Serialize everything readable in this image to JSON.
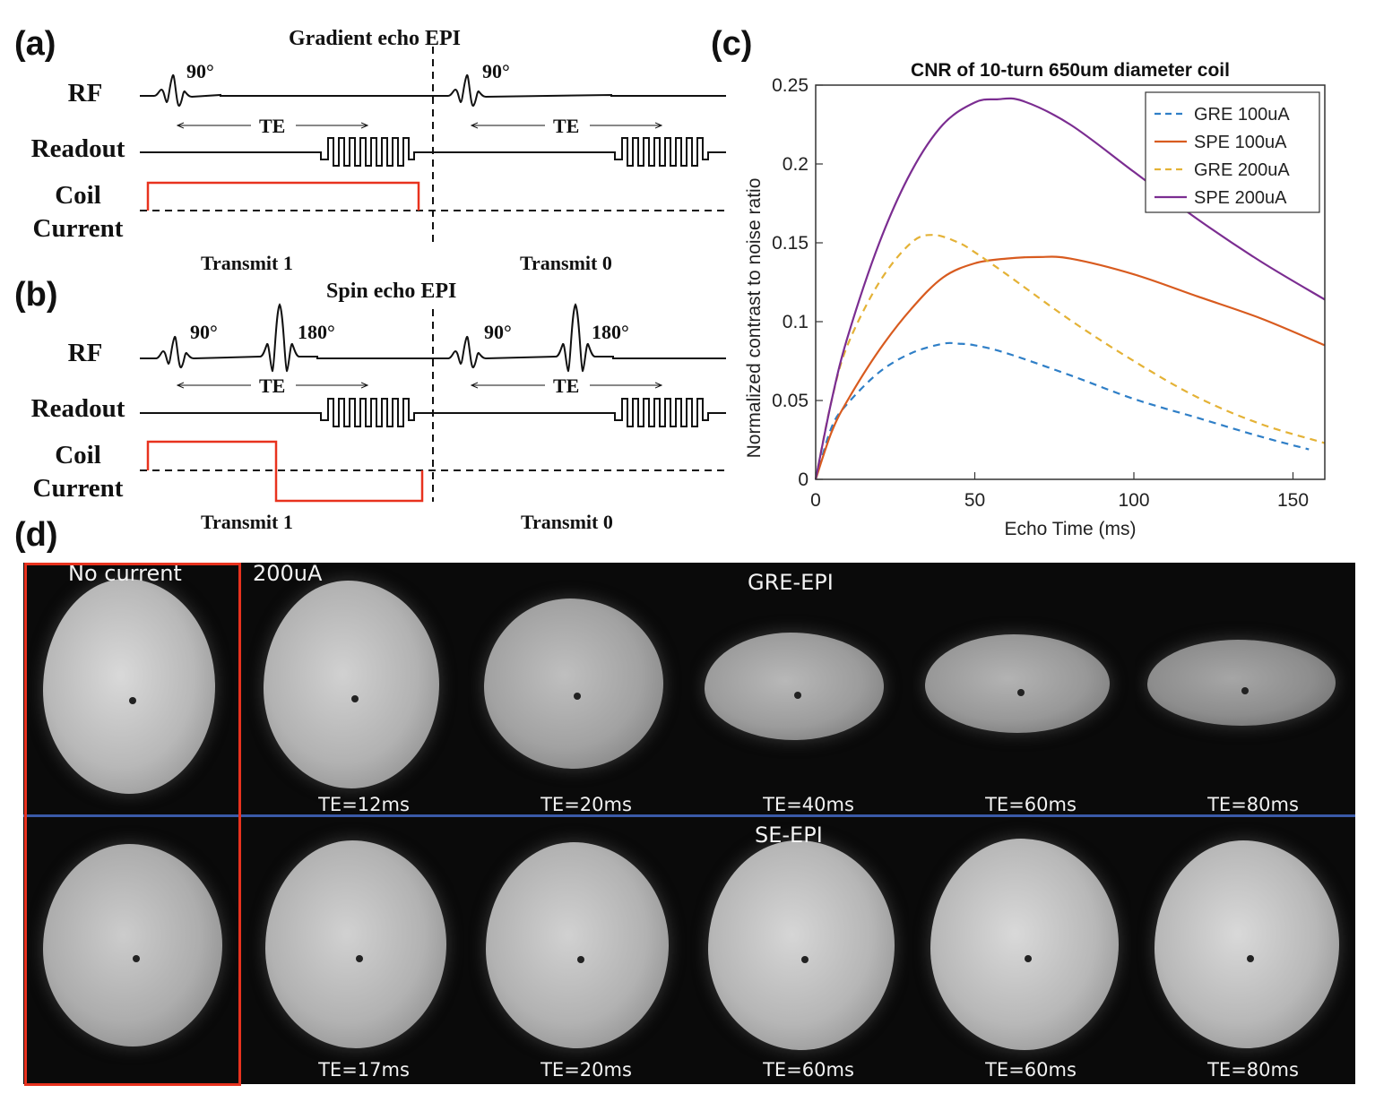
{
  "panel_a": {
    "letter": "(a)",
    "title": "Gradient echo EPI",
    "row_labels": {
      "rf": "RF",
      "readout": "Readout",
      "coil_line1": "Coil",
      "coil_line2": "Current"
    },
    "flip_left": "90°",
    "flip_right": "90°",
    "te_left": "TE",
    "te_right": "TE",
    "transmit_left": "Transmit 1",
    "transmit_right": "Transmit 0"
  },
  "panel_b": {
    "letter": "(b)",
    "title": "Spin echo EPI",
    "row_labels": {
      "rf": "RF",
      "readout": "Readout",
      "coil_line1": "Coil",
      "coil_line2": "Current"
    },
    "flip1_left": "90°",
    "flip2_left": "180°",
    "flip1_right": "90°",
    "flip2_right": "180°",
    "te_left": "TE",
    "te_right": "TE",
    "transmit_left": "Transmit 1",
    "transmit_right": "Transmit 0"
  },
  "panel_c": {
    "letter": "(c)"
  },
  "panel_d": {
    "letter": "(d)",
    "no_current_label": "No current",
    "current_label": "200uA",
    "gre_label": "GRE-EPI",
    "se_label": "SE-EPI",
    "gre_te": [
      "TE=12ms",
      "TE=20ms",
      "TE=40ms",
      "TE=60ms",
      "TE=80ms"
    ],
    "se_te": [
      "TE=17ms",
      "TE=20ms",
      "TE=60ms",
      "TE=60ms",
      "TE=80ms"
    ]
  },
  "colors": {
    "coil_current": "#e8321e",
    "gre100": "#2f7fc7",
    "spe100": "#d85b1f",
    "gre200": "#e4b236",
    "spe200": "#7b2d91",
    "separator": "#3a5aa8",
    "highlight_box": "#e8321e"
  },
  "chart_data": {
    "type": "line",
    "title": "CNR of 10-turn 650um diameter coil",
    "xlabel": "Echo Time (ms)",
    "ylabel": "Normalized contrast to noise ratio",
    "xlim": [
      0,
      160
    ],
    "ylim": [
      0,
      0.25
    ],
    "xticks": [
      0,
      50,
      100,
      150
    ],
    "yticks": [
      0,
      0.05,
      0.1,
      0.15,
      0.2,
      0.25
    ],
    "ytick_labels": [
      "0",
      "0.05",
      "0.1",
      "0.15",
      "0.2",
      "0.25"
    ],
    "legend_position": "top-right",
    "series": [
      {
        "name": "GRE 100uA",
        "style": "dashed",
        "color": "#2f7fc7",
        "x": [
          0,
          5,
          10,
          20,
          30,
          40,
          45,
          50,
          60,
          80,
          100,
          120,
          140,
          155
        ],
        "y": [
          0,
          0.033,
          0.048,
          0.068,
          0.08,
          0.086,
          0.086,
          0.085,
          0.08,
          0.066,
          0.051,
          0.039,
          0.027,
          0.019
        ]
      },
      {
        "name": "SPE 100uA",
        "style": "solid",
        "color": "#d85b1f",
        "x": [
          0,
          5,
          10,
          20,
          30,
          40,
          50,
          60,
          70,
          80,
          100,
          120,
          140,
          160
        ],
        "y": [
          0,
          0.03,
          0.05,
          0.082,
          0.108,
          0.128,
          0.137,
          0.14,
          0.141,
          0.14,
          0.13,
          0.116,
          0.102,
          0.085
        ]
      },
      {
        "name": "GRE 200uA",
        "style": "dashed",
        "color": "#e4b236",
        "x": [
          0,
          5,
          10,
          20,
          30,
          37,
          45,
          50,
          60,
          80,
          100,
          120,
          140,
          160
        ],
        "y": [
          0,
          0.05,
          0.085,
          0.125,
          0.15,
          0.155,
          0.15,
          0.144,
          0.13,
          0.101,
          0.075,
          0.052,
          0.035,
          0.023
        ]
      },
      {
        "name": "SPE 200uA",
        "style": "solid",
        "color": "#7b2d91",
        "x": [
          0,
          5,
          10,
          20,
          30,
          40,
          50,
          57,
          65,
          80,
          100,
          120,
          140,
          160
        ],
        "y": [
          0,
          0.05,
          0.09,
          0.15,
          0.195,
          0.225,
          0.239,
          0.241,
          0.24,
          0.225,
          0.195,
          0.165,
          0.138,
          0.114
        ]
      }
    ]
  }
}
